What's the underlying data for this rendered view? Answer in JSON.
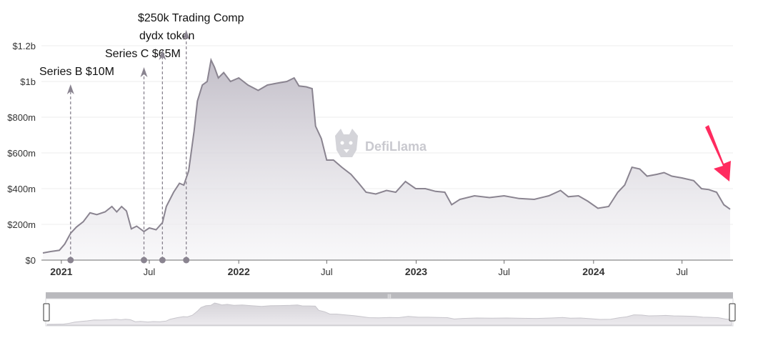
{
  "chart_data": {
    "type": "area",
    "y_unit": "USD",
    "ylim": [
      0,
      1200000000
    ],
    "y_ticks": [
      {
        "value": 0,
        "label": "$0"
      },
      {
        "value": 200000000,
        "label": "$200m"
      },
      {
        "value": 400000000,
        "label": "$400m"
      },
      {
        "value": 600000000,
        "label": "$600m"
      },
      {
        "value": 800000000,
        "label": "$800m"
      },
      {
        "value": 1000000000,
        "label": "$1b"
      },
      {
        "value": 1200000000,
        "label": "$1.2b"
      }
    ],
    "xlim": [
      "2020-11-24",
      "2024-10-08"
    ],
    "x_ticks": [
      {
        "date": "2021-01-01",
        "label": "2021",
        "bold": true
      },
      {
        "date": "2021-07-01",
        "label": "Jul",
        "bold": false
      },
      {
        "date": "2022-01-01",
        "label": "2022",
        "bold": true
      },
      {
        "date": "2022-07-01",
        "label": "Jul",
        "bold": false
      },
      {
        "date": "2023-01-01",
        "label": "2023",
        "bold": true
      },
      {
        "date": "2023-07-01",
        "label": "Jul",
        "bold": false
      },
      {
        "date": "2024-01-01",
        "label": "2024",
        "bold": true
      },
      {
        "date": "2024-07-01",
        "label": "Jul",
        "bold": false
      }
    ],
    "grid": true,
    "series": [
      {
        "color": "#8a8490",
        "points": [
          [
            "2020-11-24",
            40000000
          ],
          [
            "2020-12-10",
            48000000
          ],
          [
            "2020-12-28",
            55000000
          ],
          [
            "2021-01-08",
            90000000
          ],
          [
            "2021-01-20",
            150000000
          ],
          [
            "2021-02-01",
            185000000
          ],
          [
            "2021-02-15",
            215000000
          ],
          [
            "2021-03-01",
            265000000
          ],
          [
            "2021-03-15",
            255000000
          ],
          [
            "2021-04-01",
            270000000
          ],
          [
            "2021-04-15",
            300000000
          ],
          [
            "2021-04-25",
            270000000
          ],
          [
            "2021-05-05",
            300000000
          ],
          [
            "2021-05-15",
            275000000
          ],
          [
            "2021-05-25",
            175000000
          ],
          [
            "2021-06-05",
            190000000
          ],
          [
            "2021-06-20",
            160000000
          ],
          [
            "2021-07-01",
            180000000
          ],
          [
            "2021-07-15",
            170000000
          ],
          [
            "2021-07-28",
            210000000
          ],
          [
            "2021-08-05",
            300000000
          ],
          [
            "2021-08-20",
            380000000
          ],
          [
            "2021-09-01",
            430000000
          ],
          [
            "2021-09-10",
            420000000
          ],
          [
            "2021-09-20",
            500000000
          ],
          [
            "2021-10-01",
            720000000
          ],
          [
            "2021-10-08",
            890000000
          ],
          [
            "2021-10-18",
            980000000
          ],
          [
            "2021-10-28",
            1000000000
          ],
          [
            "2021-11-05",
            1120000000
          ],
          [
            "2021-11-12",
            1080000000
          ],
          [
            "2021-11-20",
            1020000000
          ],
          [
            "2021-12-01",
            1050000000
          ],
          [
            "2021-12-15",
            1000000000
          ],
          [
            "2022-01-01",
            1020000000
          ],
          [
            "2022-01-20",
            980000000
          ],
          [
            "2022-02-10",
            950000000
          ],
          [
            "2022-03-01",
            980000000
          ],
          [
            "2022-03-20",
            990000000
          ],
          [
            "2022-04-10",
            1000000000
          ],
          [
            "2022-04-25",
            1020000000
          ],
          [
            "2022-05-05",
            975000000
          ],
          [
            "2022-05-20",
            970000000
          ],
          [
            "2022-06-01",
            960000000
          ],
          [
            "2022-06-08",
            750000000
          ],
          [
            "2022-06-20",
            680000000
          ],
          [
            "2022-07-01",
            560000000
          ],
          [
            "2022-07-15",
            560000000
          ],
          [
            "2022-08-01",
            520000000
          ],
          [
            "2022-08-20",
            480000000
          ],
          [
            "2022-09-05",
            430000000
          ],
          [
            "2022-09-20",
            380000000
          ],
          [
            "2022-10-10",
            370000000
          ],
          [
            "2022-11-01",
            390000000
          ],
          [
            "2022-11-20",
            380000000
          ],
          [
            "2022-12-10",
            440000000
          ],
          [
            "2022-12-31",
            400000000
          ],
          [
            "2023-01-20",
            400000000
          ],
          [
            "2023-02-10",
            385000000
          ],
          [
            "2023-03-01",
            380000000
          ],
          [
            "2023-03-15",
            310000000
          ],
          [
            "2023-04-01",
            340000000
          ],
          [
            "2023-05-01",
            360000000
          ],
          [
            "2023-06-01",
            350000000
          ],
          [
            "2023-07-01",
            360000000
          ],
          [
            "2023-08-01",
            345000000
          ],
          [
            "2023-09-01",
            340000000
          ],
          [
            "2023-10-01",
            360000000
          ],
          [
            "2023-10-25",
            390000000
          ],
          [
            "2023-11-10",
            355000000
          ],
          [
            "2023-12-01",
            360000000
          ],
          [
            "2023-12-20",
            330000000
          ],
          [
            "2024-01-10",
            290000000
          ],
          [
            "2024-02-01",
            300000000
          ],
          [
            "2024-02-20",
            380000000
          ],
          [
            "2024-03-05",
            420000000
          ],
          [
            "2024-03-20",
            520000000
          ],
          [
            "2024-04-05",
            510000000
          ],
          [
            "2024-04-20",
            470000000
          ],
          [
            "2024-05-10",
            480000000
          ],
          [
            "2024-05-25",
            490000000
          ],
          [
            "2024-06-10",
            470000000
          ],
          [
            "2024-07-01",
            460000000
          ],
          [
            "2024-07-25",
            445000000
          ],
          [
            "2024-08-10",
            400000000
          ],
          [
            "2024-08-25",
            395000000
          ],
          [
            "2024-09-10",
            380000000
          ],
          [
            "2024-09-25",
            310000000
          ],
          [
            "2024-10-08",
            285000000
          ]
        ]
      }
    ],
    "annotations": [
      {
        "date": "2021-01-20",
        "text": "Series B $10M"
      },
      {
        "date": "2021-06-20",
        "text": "Series C $65M"
      },
      {
        "date": "2021-07-28",
        "text": "dydx token"
      },
      {
        "date": "2021-09-15",
        "text": "$250k Trading Comp"
      }
    ],
    "watermark": "DefiLlama",
    "navigator": {
      "handle_glyph": "|||"
    }
  },
  "colors": {
    "line": "#8a8490",
    "area_top": "#c2bec8",
    "area_bottom": "#f4f3f6",
    "annotation": "#8a8490",
    "arrow": "#ff2b5f",
    "grid": "#eeeeee"
  },
  "icons": {
    "watermark": "llama-logo-icon",
    "pointer": "pink-arrow-icon"
  }
}
